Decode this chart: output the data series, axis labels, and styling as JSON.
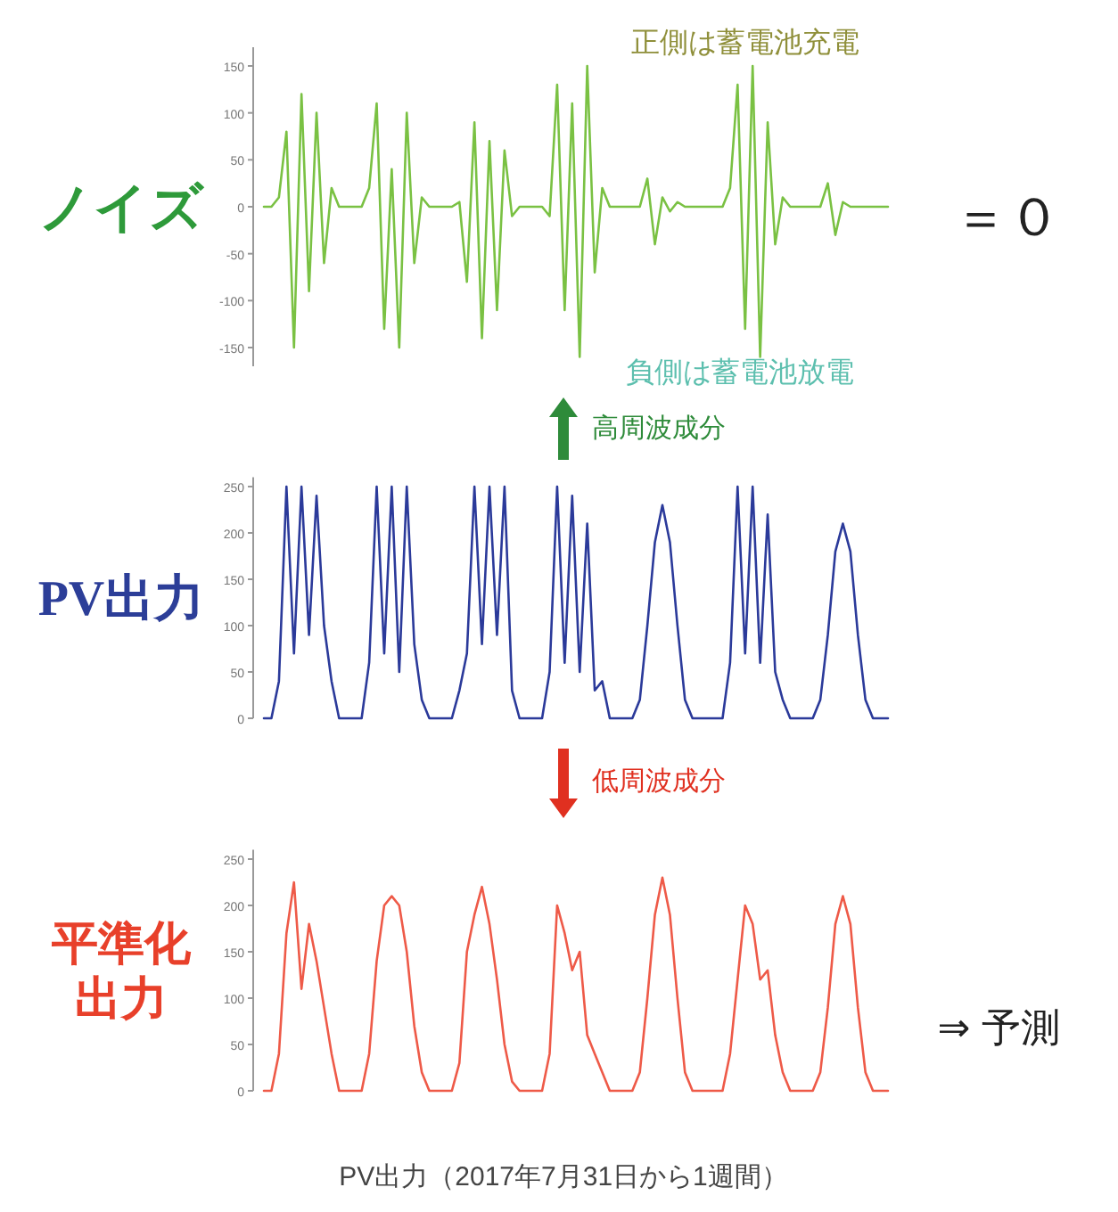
{
  "chart_data": [
    {
      "type": "line",
      "ylabel": "ノイズ",
      "categories": [
        null,
        null,
        null,
        null,
        null,
        null,
        null,
        null,
        null,
        null,
        null,
        null,
        null,
        null,
        null,
        null,
        null,
        null,
        null,
        null,
        null,
        null,
        null,
        null,
        null,
        null,
        null,
        null,
        null,
        null,
        null,
        null,
        null,
        null,
        null,
        null,
        null,
        null,
        null,
        null,
        null,
        null,
        null,
        null,
        null,
        null,
        null,
        null,
        null,
        null,
        null,
        null,
        null,
        null,
        null,
        null,
        null,
        null,
        null,
        null,
        null,
        null,
        null,
        null,
        null,
        null,
        null,
        null,
        null,
        null,
        null,
        null,
        null,
        null,
        null,
        null,
        null,
        null,
        null,
        null,
        null,
        null,
        null,
        null
      ],
      "series": [
        {
          "color": "#7ac143",
          "values": [
            0,
            0,
            10,
            80,
            -150,
            120,
            -90,
            100,
            -60,
            20,
            0,
            0,
            0,
            0,
            20,
            110,
            -130,
            40,
            -150,
            100,
            -60,
            10,
            0,
            0,
            0,
            0,
            5,
            -80,
            90,
            -140,
            70,
            -110,
            60,
            -10,
            0,
            0,
            0,
            0,
            -10,
            130,
            -110,
            110,
            -160,
            150,
            -70,
            20,
            0,
            0,
            0,
            0,
            0,
            30,
            -40,
            10,
            -5,
            5,
            0,
            0,
            0,
            0,
            0,
            0,
            20,
            130,
            -130,
            150,
            -160,
            90,
            -40,
            10,
            0,
            0,
            0,
            0,
            0,
            25,
            -30,
            5,
            0,
            0,
            0,
            0,
            0,
            0
          ]
        }
      ],
      "ylim": [
        -170,
        170
      ],
      "yticks": [
        -150,
        -100,
        -50,
        0,
        50,
        100,
        150
      ],
      "tick_labels": "y",
      "annotations": [
        "正側は蓄電池充電",
        "負側は蓄電池放電",
        "＝０",
        "高周波成分"
      ]
    },
    {
      "type": "line",
      "ylabel": "PV出力",
      "categories": [
        null,
        null,
        null,
        null,
        null,
        null,
        null,
        null,
        null,
        null,
        null,
        null,
        null,
        null,
        null,
        null,
        null,
        null,
        null,
        null,
        null,
        null,
        null,
        null,
        null,
        null,
        null,
        null,
        null,
        null,
        null,
        null,
        null,
        null,
        null,
        null,
        null,
        null,
        null,
        null,
        null,
        null,
        null,
        null,
        null,
        null,
        null,
        null,
        null,
        null,
        null,
        null,
        null,
        null,
        null,
        null,
        null,
        null,
        null,
        null,
        null,
        null,
        null,
        null,
        null,
        null,
        null,
        null,
        null,
        null,
        null,
        null,
        null,
        null,
        null,
        null,
        null,
        null,
        null,
        null,
        null,
        null,
        null,
        null
      ],
      "series": [
        {
          "color": "#2b3a9a",
          "values": [
            0,
            0,
            40,
            250,
            70,
            250,
            90,
            240,
            100,
            40,
            0,
            0,
            0,
            0,
            60,
            250,
            70,
            250,
            50,
            250,
            80,
            20,
            0,
            0,
            0,
            0,
            30,
            70,
            250,
            80,
            250,
            90,
            250,
            30,
            0,
            0,
            0,
            0,
            50,
            250,
            60,
            240,
            50,
            210,
            30,
            40,
            0,
            0,
            0,
            0,
            20,
            100,
            190,
            230,
            190,
            100,
            20,
            0,
            0,
            0,
            0,
            0,
            60,
            250,
            70,
            250,
            60,
            220,
            50,
            20,
            0,
            0,
            0,
            0,
            20,
            90,
            180,
            210,
            180,
            90,
            20,
            0,
            0,
            0
          ]
        }
      ],
      "ylim": [
        0,
        260
      ],
      "yticks": [
        0,
        50,
        100,
        150,
        200,
        250
      ],
      "tick_labels": "y",
      "annotations": [
        "低周波成分"
      ]
    },
    {
      "type": "line",
      "ylabel": "平準化出力",
      "categories": [
        null,
        null,
        null,
        null,
        null,
        null,
        null,
        null,
        null,
        null,
        null,
        null,
        null,
        null,
        null,
        null,
        null,
        null,
        null,
        null,
        null,
        null,
        null,
        null,
        null,
        null,
        null,
        null,
        null,
        null,
        null,
        null,
        null,
        null,
        null,
        null,
        null,
        null,
        null,
        null,
        null,
        null,
        null,
        null,
        null,
        null,
        null,
        null,
        null,
        null,
        null,
        null,
        null,
        null,
        null,
        null,
        null,
        null,
        null,
        null,
        null,
        null,
        null,
        null,
        null,
        null,
        null,
        null,
        null,
        null,
        null,
        null,
        null,
        null,
        null,
        null,
        null,
        null,
        null,
        null,
        null,
        null,
        null,
        null
      ],
      "series": [
        {
          "color": "#ee5a48",
          "values": [
            0,
            0,
            40,
            170,
            225,
            110,
            180,
            140,
            90,
            40,
            0,
            0,
            0,
            0,
            40,
            140,
            200,
            210,
            200,
            150,
            70,
            20,
            0,
            0,
            0,
            0,
            30,
            150,
            190,
            220,
            180,
            120,
            50,
            10,
            0,
            0,
            0,
            0,
            40,
            200,
            170,
            130,
            150,
            60,
            40,
            20,
            0,
            0,
            0,
            0,
            20,
            100,
            190,
            230,
            190,
            100,
            20,
            0,
            0,
            0,
            0,
            0,
            40,
            120,
            200,
            180,
            120,
            130,
            60,
            20,
            0,
            0,
            0,
            0,
            20,
            90,
            180,
            210,
            180,
            90,
            20,
            0,
            0,
            0
          ]
        }
      ],
      "ylim": [
        0,
        260
      ],
      "yticks": [
        0,
        50,
        100,
        150,
        200,
        250
      ],
      "tick_labels": "y",
      "annotations": [
        "⇒ 予測",
        "PV出力（2017年7月31日から1週間）"
      ]
    }
  ]
}
